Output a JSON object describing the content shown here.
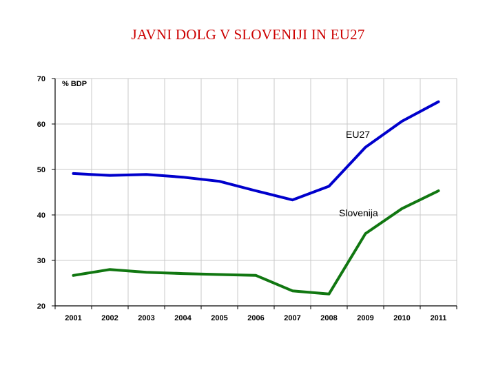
{
  "chart_data": {
    "type": "line",
    "title": "JAVNI DOLG V SLOVENIJI IN EU27",
    "ylabel": "% BDP",
    "xlabel": "",
    "x": [
      "2001",
      "2002",
      "2003",
      "2004",
      "2005",
      "2006",
      "2007",
      "2008",
      "2009",
      "2010",
      "2011"
    ],
    "ylim": [
      20,
      70
    ],
    "yticks": [
      20,
      30,
      40,
      50,
      60,
      70
    ],
    "grid": true,
    "series": [
      {
        "name": "EU27",
        "color": "#0000cc",
        "values": [
          49.1,
          48.7,
          48.9,
          48.3,
          47.4,
          45.3,
          43.3,
          46.3,
          54.9,
          60.6,
          64.9
        ]
      },
      {
        "name": "Slovenija",
        "color": "#117711",
        "values": [
          26.7,
          28.0,
          27.4,
          27.1,
          26.9,
          26.7,
          23.3,
          22.6,
          35.9,
          41.4,
          45.3
        ]
      }
    ]
  }
}
